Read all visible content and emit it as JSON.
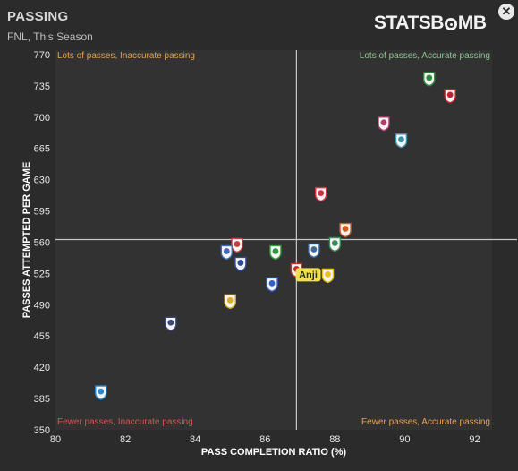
{
  "header": {
    "title": "PASSING",
    "subtitle": "FNL, This Season",
    "logo_pre": "STATSB",
    "logo_post": "MB",
    "close_label": "✕"
  },
  "colors": {
    "background": "#2b2b2b",
    "plot_background": "#323232",
    "crosshair": "#c8c8c8",
    "quad_top_left": "#e6a050",
    "quad_top_right": "#8fc48f",
    "quad_bottom_left": "#d9534f",
    "quad_bottom_right": "#e6a050",
    "highlight": "#f0e14a"
  },
  "chart_data": {
    "type": "scatter",
    "xlabel": "PASS COMPLETION RATIO (%)",
    "ylabel": "PASSES ATTEMPTED PER GAME",
    "xlim": [
      80,
      92.5
    ],
    "ylim": [
      350,
      775
    ],
    "xticks": [
      80,
      82,
      84,
      86,
      88,
      90,
      92
    ],
    "yticks": [
      350,
      385,
      420,
      455,
      490,
      525,
      560,
      595,
      630,
      665,
      700,
      735,
      770
    ],
    "grid": false,
    "reference_x": 86.9,
    "reference_y": 563,
    "quadrant_labels": {
      "top_left": "Lots of passes, Inaccurate passing",
      "top_right": "Lots of passes, Accurate passing",
      "bottom_left": "Fewer passes, Inaccurate passing",
      "bottom_right": "Fewer passes, Accurate passing"
    },
    "highlight_label": "Anji",
    "points": [
      {
        "x": 90.7,
        "y": 743,
        "icon": "crest-green-red",
        "color": "#2e8b3a"
      },
      {
        "x": 91.3,
        "y": 724,
        "icon": "crest-red-white",
        "color": "#c8202a"
      },
      {
        "x": 89.4,
        "y": 693,
        "icon": "crest-star",
        "color": "#b03a6a"
      },
      {
        "x": 89.9,
        "y": 674,
        "icon": "crest-shield-teal",
        "color": "#3a8fa8"
      },
      {
        "x": 87.6,
        "y": 614,
        "icon": "crest-red-diamond",
        "color": "#d03040"
      },
      {
        "x": 88.3,
        "y": 574,
        "icon": "crest-orange-green",
        "color": "#d05a20"
      },
      {
        "x": 88.0,
        "y": 558,
        "icon": "crest-green-shield",
        "color": "#3c8a5a"
      },
      {
        "x": 87.4,
        "y": 551,
        "icon": "crest-dark-blue",
        "color": "#3a6a9a"
      },
      {
        "x": 86.3,
        "y": 549,
        "icon": "crest-green-ball",
        "color": "#2f9a3a"
      },
      {
        "x": 85.2,
        "y": 557,
        "icon": "crest-ball",
        "color": "#c04040"
      },
      {
        "x": 84.9,
        "y": 549,
        "icon": "crest-blue-round",
        "color": "#3a6ab8"
      },
      {
        "x": 85.3,
        "y": 536,
        "icon": "crest-blue-letter",
        "color": "#2a4a9a"
      },
      {
        "x": 86.9,
        "y": 529,
        "icon": "crest-small-red",
        "color": "#c83030"
      },
      {
        "x": 87.8,
        "y": 523,
        "icon": "crest-yellow",
        "color": "#e8c020"
      },
      {
        "x": 86.2,
        "y": 513,
        "icon": "crest-blue-shield",
        "color": "#3060c8"
      },
      {
        "x": 85.0,
        "y": 494,
        "icon": "crest-yellow-black",
        "color": "#d8b020"
      },
      {
        "x": 83.3,
        "y": 469,
        "icon": "crest-navy-shield",
        "color": "#3a4a7a"
      },
      {
        "x": 81.3,
        "y": 392,
        "icon": "crest-blue-bird",
        "color": "#2a8ad0"
      }
    ]
  }
}
